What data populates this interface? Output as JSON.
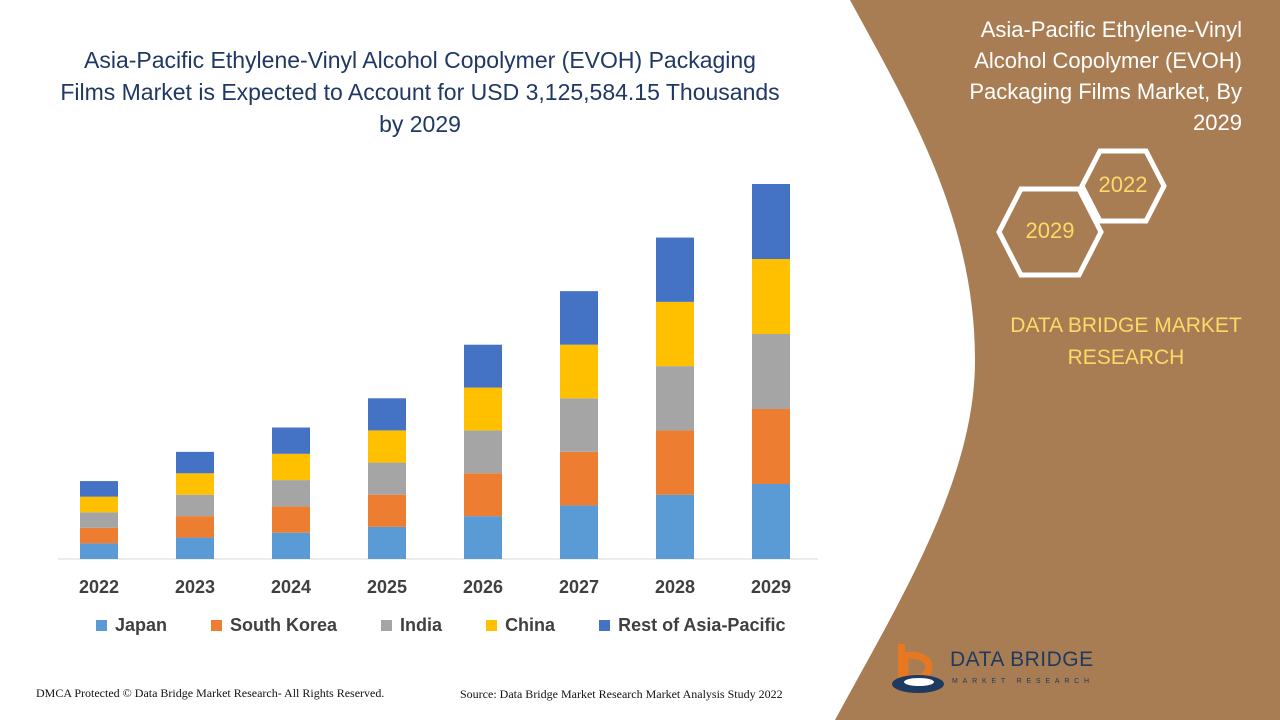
{
  "header": {
    "title": "Asia-Pacific Ethylene-Vinyl Alcohol Copolymer (EVOH) Packaging Films Market is Expected to Account for USD 3,125,584.15 Thousands by 2029"
  },
  "side_panel": {
    "title": "Asia-Pacific Ethylene-Vinyl Alcohol Copolymer (EVOH) Packaging Films Market, By 2029",
    "hex_year_a": "2022",
    "hex_year_b": "2029",
    "brand_line1": "DATA BRIDGE MARKET",
    "brand_line2": "RESEARCH",
    "panel_color": "#a97d54"
  },
  "chart_data": {
    "type": "bar",
    "stacked": true,
    "title": "",
    "xlabel": "",
    "ylabel": "",
    "grid": false,
    "legend_position": "bottom",
    "categories": [
      "2022",
      "2023",
      "2024",
      "2025",
      "2026",
      "2027",
      "2028",
      "2029"
    ],
    "series": [
      {
        "name": "Japan",
        "color": "#5b9bd5",
        "values": [
          16,
          22,
          27,
          33,
          44,
          55,
          66,
          77
        ]
      },
      {
        "name": "South Korea",
        "color": "#ed7d31",
        "values": [
          16,
          22,
          27,
          33,
          44,
          55,
          66,
          77
        ]
      },
      {
        "name": "India",
        "color": "#a5a5a5",
        "values": [
          16,
          22,
          27,
          33,
          44,
          55,
          66,
          77
        ]
      },
      {
        "name": "China",
        "color": "#ffc000",
        "values": [
          16,
          22,
          27,
          33,
          44,
          55,
          66,
          77
        ]
      },
      {
        "name": "Rest of Asia-Pacific",
        "color": "#4472c4",
        "values": [
          16,
          22,
          27,
          33,
          44,
          55,
          66,
          77
        ]
      }
    ]
  },
  "footer": {
    "copyright": "DMCA Protected © Data Bridge Market Research- All Rights Reserved.",
    "source": "Source: Data Bridge Market Research Market Analysis Study 2022"
  },
  "logo": {
    "name": "DATA BRIDGE",
    "tagline": "MARKET RESEARCH"
  }
}
